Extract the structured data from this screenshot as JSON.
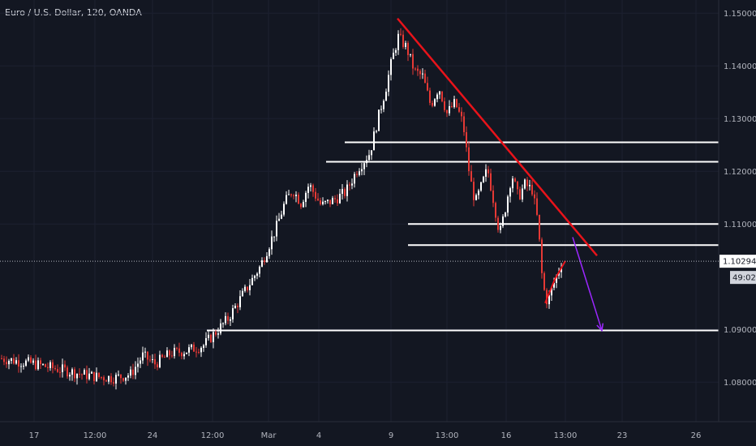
{
  "header": {
    "symbol_title": "Euro / U.S. Dollar, 120, OANDA"
  },
  "colors": {
    "background": "#131722",
    "up_candle": "#ffffff",
    "down_candle": "#e53935",
    "trendline": "#e8131a",
    "support_line": "#ffffff",
    "projection_arrow": "#9c27ff",
    "price_label_bg": "#ffffff",
    "countdown_bg": "#d1d4dc"
  },
  "chart_data": {
    "type": "candlestick",
    "ylim": [
      1.0725,
      1.1525
    ],
    "y_ticks": [
      "1.15000",
      "1.14000",
      "1.13000",
      "1.12000",
      "1.11000",
      "1.09000",
      "1.08000"
    ],
    "x_ticks": [
      "17",
      "12:00",
      "24",
      "12:00",
      "Mar",
      "4",
      "9",
      "13:00",
      "16",
      "13:00",
      "23",
      "26"
    ],
    "current_price": "1.10294",
    "countdown": "49:02",
    "price_path": [
      [
        0,
        1.0845
      ],
      [
        20,
        1.084
      ],
      [
        40,
        1.0835
      ],
      [
        60,
        1.0828
      ],
      [
        80,
        1.0822
      ],
      [
        100,
        1.0815
      ],
      [
        120,
        1.081
      ],
      [
        140,
        1.0808
      ],
      [
        160,
        1.0815
      ],
      [
        175,
        1.085
      ],
      [
        190,
        1.0835
      ],
      [
        210,
        1.0855
      ],
      [
        230,
        1.086
      ],
      [
        250,
        1.087
      ],
      [
        265,
        1.0895
      ],
      [
        280,
        1.092
      ],
      [
        300,
        1.097
      ],
      [
        320,
        1.102
      ],
      [
        340,
        1.1095
      ],
      [
        350,
        1.114
      ],
      [
        360,
        1.1165
      ],
      [
        370,
        1.114
      ],
      [
        380,
        1.1175
      ],
      [
        395,
        1.1135
      ],
      [
        410,
        1.1145
      ],
      [
        425,
        1.116
      ],
      [
        440,
        1.1205
      ],
      [
        455,
        1.1235
      ],
      [
        465,
        1.13
      ],
      [
        475,
        1.136
      ],
      [
        482,
        1.141
      ],
      [
        490,
        1.1455
      ],
      [
        500,
        1.1435
      ],
      [
        510,
        1.139
      ],
      [
        520,
        1.138
      ],
      [
        530,
        1.1325
      ],
      [
        540,
        1.136
      ],
      [
        550,
        1.131
      ],
      [
        560,
        1.133
      ],
      [
        570,
        1.129
      ],
      [
        578,
        1.119
      ],
      [
        585,
        1.114
      ],
      [
        592,
        1.117
      ],
      [
        600,
        1.1205
      ],
      [
        608,
        1.114
      ],
      [
        615,
        1.108
      ],
      [
        622,
        1.113
      ],
      [
        630,
        1.1195
      ],
      [
        638,
        1.115
      ],
      [
        646,
        1.1175
      ],
      [
        655,
        1.1165
      ],
      [
        662,
        1.1105
      ],
      [
        668,
        1.0985
      ],
      [
        674,
        1.095
      ],
      [
        680,
        1.098
      ],
      [
        686,
        1.1005
      ],
      [
        692,
        1.103
      ]
    ],
    "horizontal_levels": [
      {
        "price": 1.1255,
        "x_start": 425,
        "x_end": 886
      },
      {
        "price": 1.1218,
        "x_start": 402,
        "x_end": 886
      },
      {
        "price": 1.11,
        "x_start": 503,
        "x_end": 886
      },
      {
        "price": 1.106,
        "x_start": 503,
        "x_end": 886
      },
      {
        "price": 1.0898,
        "x_start": 255,
        "x_end": 886
      }
    ],
    "trendline": {
      "from": [
        490,
        1.149
      ],
      "to": [
        736,
        1.104
      ]
    },
    "drawn_zigzag": [
      [
        672,
        1.095
      ],
      [
        684,
        1.0995
      ],
      [
        697,
        1.103
      ]
    ],
    "projection_arrow": {
      "from": [
        706,
        1.1075
      ],
      "to": [
        742,
        1.0898
      ]
    }
  }
}
